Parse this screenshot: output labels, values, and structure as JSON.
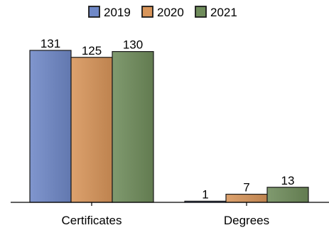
{
  "chart_data": {
    "type": "bar",
    "title": "",
    "xlabel": "",
    "ylabel": "",
    "categories": [
      "Certificates",
      "Degrees"
    ],
    "series": [
      {
        "name": "2019",
        "values": [
          131,
          1
        ],
        "color": "#6f88c7"
      },
      {
        "name": "2020",
        "values": [
          125,
          7
        ],
        "color": "#d8955a"
      },
      {
        "name": "2021",
        "values": [
          130,
          13
        ],
        "color": "#6f8c5b"
      }
    ],
    "ylim": [
      0,
      140
    ],
    "y_axis_shown": false,
    "grid": false,
    "legend": "top-center",
    "data_labels": true
  }
}
